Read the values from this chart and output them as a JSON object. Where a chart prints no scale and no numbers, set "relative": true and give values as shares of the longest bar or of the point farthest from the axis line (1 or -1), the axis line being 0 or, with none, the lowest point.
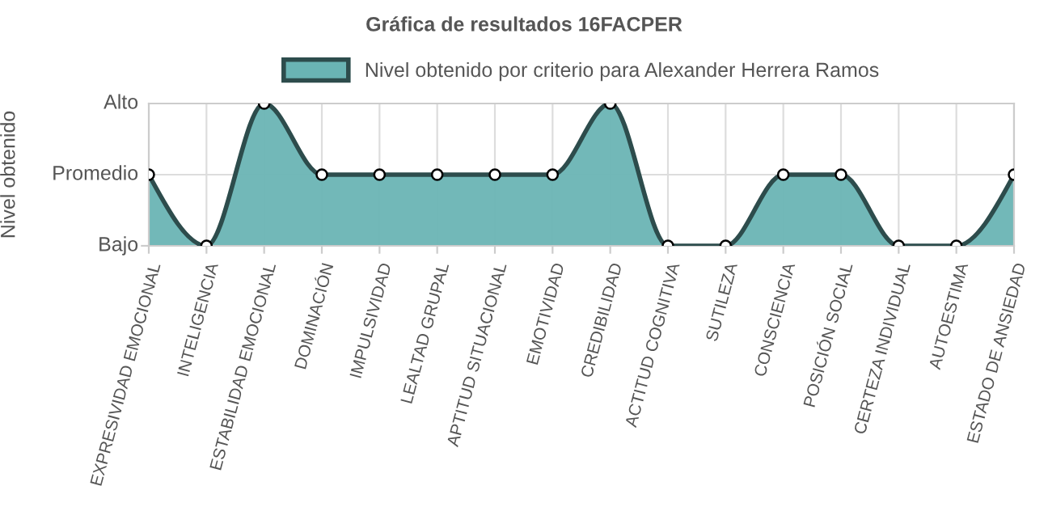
{
  "chart_data": {
    "type": "area",
    "title": "Gráfica de resultados 16FACPER",
    "ylabel": "Nivel obtenido",
    "categories": [
      "EXPRESIVIDAD EMOCIONAL",
      "INTELIGENCIA",
      "ESTABILIDAD EMOCIONAL",
      "DOMINACIÓN",
      "IMPULSIVIDAD",
      "LEALTAD GRUPAL",
      "APTITUD SITUACIONAL",
      "EMOTIVIDAD",
      "CREDIBILIDAD",
      "ACTITUD COGNITIVA",
      "SUTILEZA",
      "CONSCIENCIA",
      "POSICIÓN SOCIAL",
      "CERTEZA INDIVIDUAL",
      "AUTOESTIMA",
      "ESTADO DE ANSIEDAD"
    ],
    "series": [
      {
        "name": "Nivel obtenido por criterio para Alexander Herrera Ramos",
        "color": "#6ab4b4",
        "values": [
          0.5,
          0,
          1,
          0.5,
          0.5,
          0.5,
          0.5,
          0.5,
          1,
          0,
          0,
          0.5,
          0.5,
          0,
          0,
          0.5
        ]
      }
    ],
    "relative": true,
    "annotations": [
      "Bajo",
      "Promedio",
      "Alto"
    ],
    "grid": true,
    "legend": "top",
    "marker": "circle",
    "line_style": "solid"
  }
}
